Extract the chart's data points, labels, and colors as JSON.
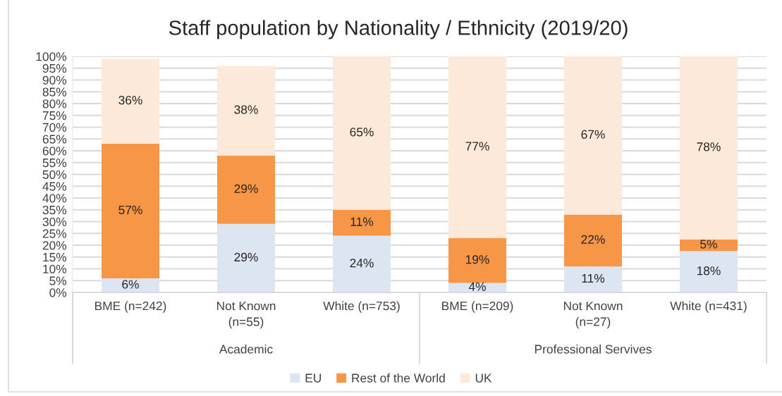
{
  "chart_data": {
    "type": "bar",
    "title": "Staff population by Nationality / Ethnicity (2019/20)",
    "categories": [
      "BME (n=242)",
      "Not Known (n=55)",
      "White (n=753)",
      "BME (n=209)",
      "Not Known (n=27)",
      "White (n=431)"
    ],
    "stacked": true,
    "series": [
      {
        "name": "EU",
        "color": "#dce6f2",
        "values": [
          6,
          29,
          24,
          4,
          11,
          17.5
        ],
        "value_labels": [
          "6%",
          "29%",
          "24%",
          "4%",
          "11%",
          "18%"
        ]
      },
      {
        "name": "Rest of the World",
        "color": "#f79646",
        "values": [
          57,
          29,
          11,
          19,
          22,
          5
        ],
        "value_labels": [
          "57%",
          "29%",
          "11%",
          "19%",
          "22%",
          "5%"
        ]
      },
      {
        "name": "UK",
        "color": "#fde9d9",
        "values": [
          36,
          38,
          65,
          77,
          67,
          77.5
        ],
        "value_labels": [
          "36%",
          "38%",
          "65%",
          "77%",
          "67%",
          "78%"
        ]
      }
    ],
    "ylim": [
      0,
      100
    ],
    "yticks": [
      {
        "value": 0,
        "label": "0%"
      },
      {
        "value": 5,
        "label": "5%"
      },
      {
        "value": 10,
        "label": "10%"
      },
      {
        "value": 15,
        "label": "15%"
      },
      {
        "value": 20,
        "label": "20%"
      },
      {
        "value": 25,
        "label": "25%"
      },
      {
        "value": 30,
        "label": "30%"
      },
      {
        "value": 35,
        "label": "35%"
      },
      {
        "value": 40,
        "label": "40%"
      },
      {
        "value": 45,
        "label": "45%"
      },
      {
        "value": 50,
        "label": "50%"
      },
      {
        "value": 55,
        "label": "55%"
      },
      {
        "value": 60,
        "label": "60%"
      },
      {
        "value": 65,
        "label": "65%"
      },
      {
        "value": 70,
        "label": "70%"
      },
      {
        "value": 75,
        "label": "75%"
      },
      {
        "value": 80,
        "label": "80%"
      },
      {
        "value": 85,
        "label": "85%"
      },
      {
        "value": 90,
        "label": "90%"
      },
      {
        "value": 95,
        "label": "95%"
      },
      {
        "value": 100,
        "label": "100%"
      }
    ],
    "grid": "y",
    "legend": "bottom",
    "annotations": [
      "Academic",
      "Professional Servives"
    ]
  }
}
